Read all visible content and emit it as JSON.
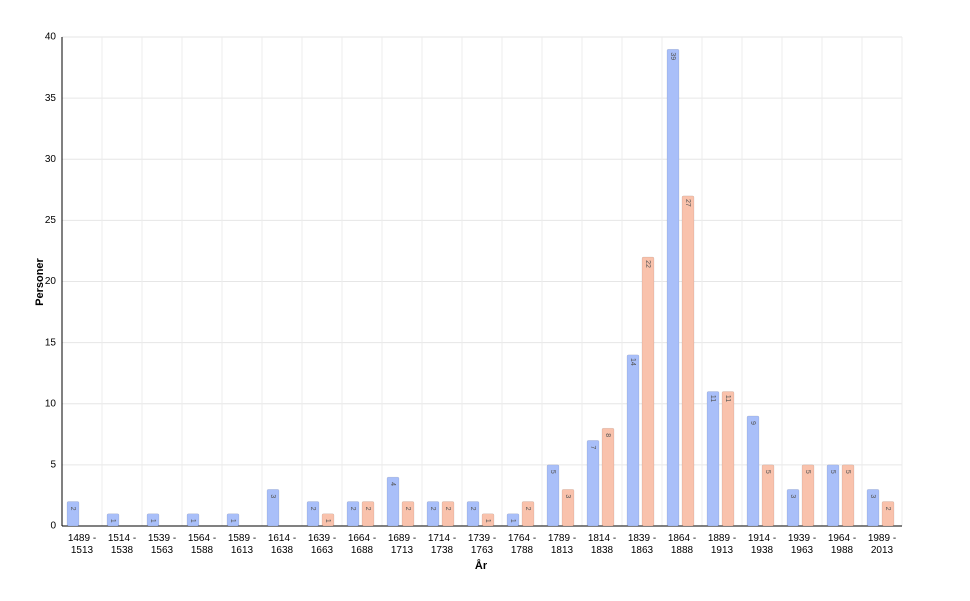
{
  "chart_data": {
    "type": "bar",
    "x_label": "År",
    "y_label": "Personer",
    "categories": [
      "1489 - 1513",
      "1514 - 1538",
      "1539 - 1563",
      "1564 - 1588",
      "1589 - 1613",
      "1614 - 1638",
      "1639 - 1663",
      "1664 - 1688",
      "1689 - 1713",
      "1714 - 1738",
      "1739 - 1763",
      "1764 - 1788",
      "1789 - 1813",
      "1814 - 1838",
      "1839 - 1863",
      "1864 - 1888",
      "1889 - 1913",
      "1914 - 1938",
      "1939 - 1963",
      "1964 - 1988",
      "1989 - 2013"
    ],
    "series": [
      {
        "color": "#a9bff9",
        "values": [
          2,
          1,
          1,
          1,
          1,
          3,
          2,
          2,
          4,
          2,
          2,
          1,
          5,
          7,
          14,
          39,
          11,
          9,
          3,
          5,
          3
        ]
      },
      {
        "color": "#f9c2ac",
        "values": [
          null,
          null,
          null,
          null,
          null,
          null,
          1,
          2,
          2,
          2,
          1,
          2,
          3,
          8,
          22,
          27,
          11,
          5,
          5,
          5,
          2
        ]
      }
    ],
    "ylim": [
      0,
      40
    ],
    "yticks": [
      0,
      5,
      10,
      15,
      20,
      25,
      30,
      35,
      40
    ],
    "grid": true
  }
}
